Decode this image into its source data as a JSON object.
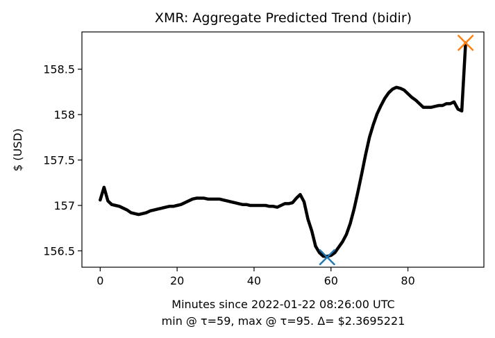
{
  "chart_data": {
    "type": "line",
    "title": "XMR: Aggregate Predicted Trend (bidir)",
    "xlabel": "Minutes since 2022-01-22 08:26:00 UTC",
    "xlabel2": "min @ τ=59, max @ τ=95. Δ= $2.3695221",
    "ylabel": "$ (USD)",
    "xlim": [
      -4.75,
      99.75
    ],
    "ylim": [
      156.32,
      158.91
    ],
    "xticks": [
      0,
      20,
      40,
      60,
      80
    ],
    "xtick_labels": [
      "0",
      "20",
      "40",
      "60",
      "80"
    ],
    "yticks": [
      156.5,
      157,
      157.5,
      158,
      158.5
    ],
    "ytick_labels": [
      "156.5",
      "157",
      "157.5",
      "158",
      "158.5"
    ],
    "grid": false,
    "series": [
      {
        "color": "#000000",
        "x": [
          0,
          1,
          2,
          3,
          4,
          5,
          6,
          7,
          8,
          9,
          10,
          11,
          12,
          13,
          14,
          15,
          16,
          17,
          18,
          19,
          20,
          21,
          22,
          23,
          24,
          25,
          26,
          27,
          28,
          29,
          30,
          31,
          32,
          33,
          34,
          35,
          36,
          37,
          38,
          39,
          40,
          41,
          42,
          43,
          44,
          45,
          46,
          47,
          48,
          49,
          50,
          51,
          52,
          53,
          54,
          55,
          56,
          57,
          58,
          59,
          60,
          61,
          62,
          63,
          64,
          65,
          66,
          67,
          68,
          69,
          70,
          71,
          72,
          73,
          74,
          75,
          76,
          77,
          78,
          79,
          80,
          81,
          82,
          83,
          84,
          85,
          86,
          87,
          88,
          89,
          90,
          91,
          92,
          93,
          94,
          95
        ],
        "y": [
          157.06,
          157.2,
          157.05,
          157.01,
          157.0,
          156.99,
          156.97,
          156.95,
          156.92,
          156.91,
          156.9,
          156.91,
          156.92,
          156.94,
          156.95,
          156.96,
          156.97,
          156.98,
          156.99,
          156.99,
          157.0,
          157.01,
          157.03,
          157.05,
          157.07,
          157.08,
          157.08,
          157.08,
          157.07,
          157.07,
          157.07,
          157.07,
          157.06,
          157.05,
          157.04,
          157.03,
          157.02,
          157.01,
          157.01,
          157.0,
          157.0,
          157.0,
          157.0,
          157.0,
          156.99,
          156.99,
          156.98,
          157.0,
          157.02,
          157.02,
          157.03,
          157.08,
          157.12,
          157.04,
          156.85,
          156.72,
          156.55,
          156.48,
          156.44,
          156.44,
          156.45,
          156.48,
          156.54,
          156.6,
          156.68,
          156.8,
          156.96,
          157.15,
          157.35,
          157.56,
          157.75,
          157.89,
          158.01,
          158.1,
          158.18,
          158.24,
          158.28,
          158.3,
          158.29,
          158.27,
          158.23,
          158.19,
          158.16,
          158.12,
          158.08,
          158.08,
          158.08,
          158.09,
          158.1,
          158.1,
          158.12,
          158.12,
          158.14,
          158.06,
          158.04,
          158.79
        ]
      }
    ],
    "markers": [
      {
        "label": "min",
        "x": 59,
        "y": 156.43,
        "shape": "x",
        "color": "#1f77b4"
      },
      {
        "label": "max",
        "x": 95,
        "y": 158.79,
        "shape": "x",
        "color": "#ff7f0e"
      }
    ]
  }
}
